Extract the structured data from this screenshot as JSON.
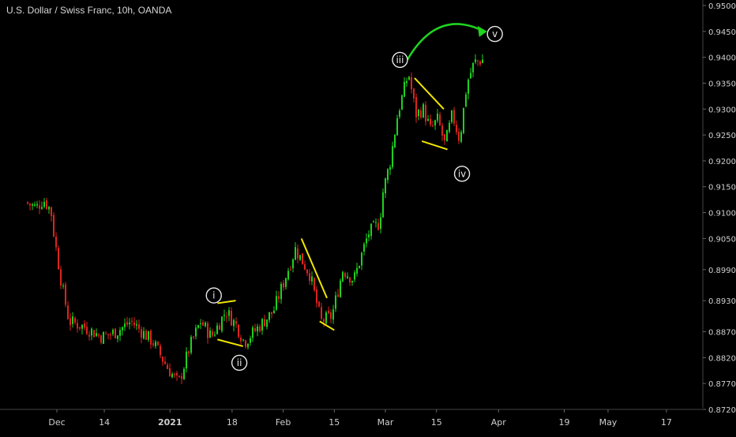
{
  "header": {
    "title": "U.S. Dollar / Swiss Franc, 10h, OANDA"
  },
  "colors": {
    "background": "#000000",
    "up": "#1fd31f",
    "down": "#e0241f",
    "axis_text": "#cfcfcf",
    "trendline": "#f2e600",
    "arrow": "#1fd31f",
    "label": "#e8e8e8"
  },
  "chart_data": {
    "type": "candlestick",
    "title": "U.S. Dollar / Swiss Franc, 10h, OANDA",
    "ylim": [
      0.872,
      0.95
    ],
    "y_ticks": [
      "0.95000",
      "0.94500",
      "0.94000",
      "0.93500",
      "0.93000",
      "0.92500",
      "0.92000",
      "0.91500",
      "0.91000",
      "0.90500",
      "0.89900",
      "0.89300",
      "0.88700",
      "0.88200",
      "0.87700",
      "0.87200"
    ],
    "x_ticks": [
      "Dec",
      "14",
      "2021",
      "18",
      "Feb",
      "15",
      "Mar",
      "15",
      "Apr",
      "19",
      "May",
      "17"
    ],
    "grid": false,
    "price_path": [
      {
        "t": "Nov 23",
        "p": 0.912
      },
      {
        "t": "Nov 26",
        "p": 0.911
      },
      {
        "t": "Nov 28",
        "p": 0.9125
      },
      {
        "t": "Nov 30",
        "p": 0.9105
      },
      {
        "t": "Dec 1",
        "p": 0.905
      },
      {
        "t": "Dec 3",
        "p": 0.896
      },
      {
        "t": "Dec 5",
        "p": 0.889
      },
      {
        "t": "Dec 9",
        "p": 0.888
      },
      {
        "t": "Dec 14",
        "p": 0.886
      },
      {
        "t": "Dec 18",
        "p": 0.887
      },
      {
        "t": "Dec 22",
        "p": 0.889
      },
      {
        "t": "Dec 28",
        "p": 0.885
      },
      {
        "t": "Jan 1",
        "p": 0.88
      },
      {
        "t": "Jan 4",
        "p": 0.877
      },
      {
        "t": "Jan 7",
        "p": 0.884
      },
      {
        "t": "Jan 10",
        "p": 0.889
      },
      {
        "t": "Jan 13",
        "p": 0.886
      },
      {
        "t": "Jan 17",
        "p": 0.891
      },
      {
        "t": "Jan 20",
        "p": 0.888
      },
      {
        "t": "Jan 22",
        "p": 0.885
      },
      {
        "t": "Jan 26",
        "p": 0.888
      },
      {
        "t": "Jan 30",
        "p": 0.891
      },
      {
        "t": "Feb 3",
        "p": 0.899
      },
      {
        "t": "Feb 5",
        "p": 0.903
      },
      {
        "t": "Feb 9",
        "p": 0.898
      },
      {
        "t": "Feb 12",
        "p": 0.889
      },
      {
        "t": "Feb 15",
        "p": 0.89
      },
      {
        "t": "Feb 18",
        "p": 0.899
      },
      {
        "t": "Feb 21",
        "p": 0.897
      },
      {
        "t": "Feb 25",
        "p": 0.906
      },
      {
        "t": "Feb 28",
        "p": 0.908
      },
      {
        "t": "Mar 1",
        "p": 0.914
      },
      {
        "t": "Mar 3",
        "p": 0.92
      },
      {
        "t": "Mar 5",
        "p": 0.929
      },
      {
        "t": "Mar 8",
        "p": 0.937
      },
      {
        "t": "Mar 10",
        "p": 0.929
      },
      {
        "t": "Mar 12",
        "p": 0.93
      },
      {
        "t": "Mar 14",
        "p": 0.926
      },
      {
        "t": "Mar 16",
        "p": 0.928
      },
      {
        "t": "Mar 18",
        "p": 0.923
      },
      {
        "t": "Mar 20",
        "p": 0.929
      },
      {
        "t": "Mar 22",
        "p": 0.924
      },
      {
        "t": "Mar 24",
        "p": 0.935
      },
      {
        "t": "Mar 26",
        "p": 0.939
      },
      {
        "t": "Mar 28",
        "p": 0.9395
      }
    ],
    "wave_labels": [
      {
        "label": "i",
        "t": "Jan 13",
        "p": 0.894
      },
      {
        "label": "ii",
        "t": "Jan 20",
        "p": 0.881
      },
      {
        "label": "iii",
        "t": "Mar 5",
        "p": 0.9395
      },
      {
        "label": "iv",
        "t": "Mar 22",
        "p": 0.9175
      },
      {
        "label": "v",
        "t": "Mar 31",
        "p": 0.9445
      }
    ],
    "trendlines": [
      {
        "from": {
          "t": "Jan 14",
          "p": 0.8925
        },
        "to": {
          "t": "Jan 19",
          "p": 0.893
        }
      },
      {
        "from": {
          "t": "Jan 14",
          "p": 0.8855
        },
        "to": {
          "t": "Jan 21",
          "p": 0.8842
        }
      },
      {
        "from": {
          "t": "Feb 6",
          "p": 0.905
        },
        "to": {
          "t": "Feb 13",
          "p": 0.8935
        }
      },
      {
        "from": {
          "t": "Feb 11",
          "p": 0.889
        },
        "to": {
          "t": "Feb 15",
          "p": 0.8873
        }
      },
      {
        "from": {
          "t": "Mar 9",
          "p": 0.936
        },
        "to": {
          "t": "Mar 17",
          "p": 0.93
        }
      },
      {
        "from": {
          "t": "Mar 11",
          "p": 0.9238
        },
        "to": {
          "t": "Mar 18",
          "p": 0.9222
        }
      }
    ],
    "arrow": {
      "from": {
        "t": "Mar 7",
        "p": 0.9395
      },
      "to": {
        "t": "Mar 28",
        "p": 0.945
      }
    }
  }
}
